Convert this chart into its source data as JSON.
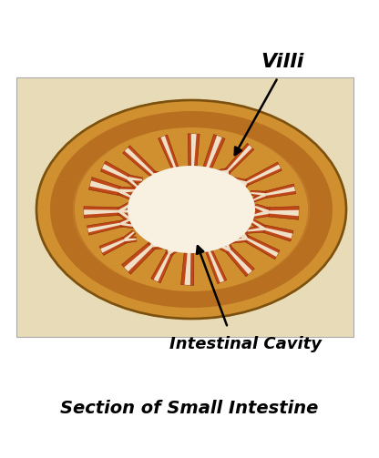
{
  "title": "Section of Small Intestine",
  "label_villi": "Villi",
  "label_cavity": "Intestinal Cavity",
  "bg_color": "#ffffff",
  "photo_bg": "#e8dbb8",
  "outer_wall_color": "#c8902a",
  "outer_fill": "#d4a040",
  "wall_band_color": "#c07828",
  "villi_fill": "#c04818",
  "villi_edge": "#8b2808",
  "villi_inner": "#f0e0c8",
  "cavity_color": "#f8f0e0",
  "title_fontsize": 13,
  "label_fontsize": 12
}
